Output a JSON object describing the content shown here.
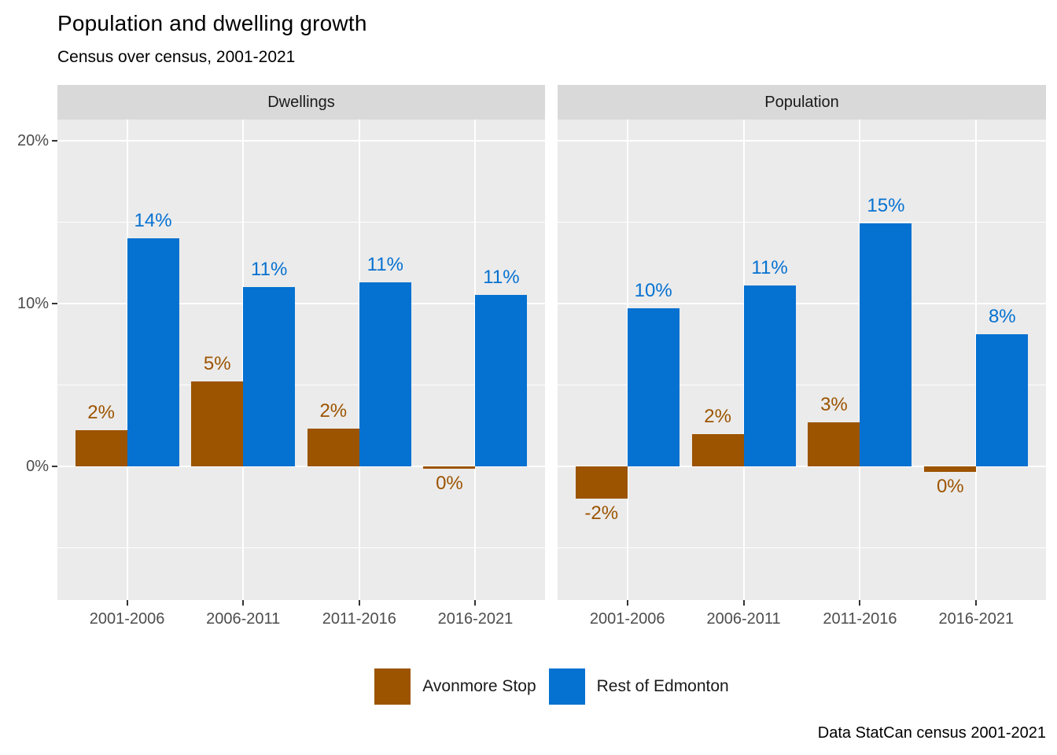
{
  "title": "Population and dwelling growth",
  "subtitle": "Census over census, 2001-2021",
  "caption": "Data StatCan census 2001-2021",
  "colors": {
    "avonmore": "#9C5400",
    "rest": "#0571D1",
    "panel_bg": "#EBEBEB",
    "strip_bg": "#D9D9D9",
    "grid": "#FFFFFF",
    "axis_text": "#4D4D4D",
    "tick_mark": "#333333"
  },
  "legend": {
    "items": [
      {
        "label": "Avonmore Stop",
        "color": "#9C5400"
      },
      {
        "label": "Rest of Edmonton",
        "color": "#0571D1"
      }
    ]
  },
  "y_axis": {
    "ticks": [
      {
        "label": "20%",
        "value": 20
      },
      {
        "label": "10%",
        "value": 10
      },
      {
        "label": "0%",
        "value": 0
      }
    ]
  },
  "chart_data": {
    "type": "bar",
    "title": "Population and dwelling growth",
    "subtitle": "Census over census, 2001-2021",
    "caption": "Data StatCan census 2001-2021",
    "categories": [
      "2001-2006",
      "2006-2011",
      "2011-2016",
      "2016-2021"
    ],
    "facets": [
      {
        "title": "Dwellings",
        "series": [
          {
            "name": "Avonmore Stop",
            "color": "#9C5400",
            "values": [
              2.2,
              5.2,
              2.3,
              -0.15
            ],
            "labels": [
              "2%",
              "5%",
              "2%",
              "0%"
            ]
          },
          {
            "name": "Rest of Edmonton",
            "color": "#0571D1",
            "values": [
              14.0,
              11.0,
              11.3,
              10.5
            ],
            "labels": [
              "14%",
              "11%",
              "11%",
              "11%"
            ]
          }
        ]
      },
      {
        "title": "Population",
        "series": [
          {
            "name": "Avonmore Stop",
            "color": "#9C5400",
            "values": [
              -2.0,
              2.0,
              2.7,
              -0.35
            ],
            "labels": [
              "-2%",
              "2%",
              "3%",
              "0%"
            ]
          },
          {
            "name": "Rest of Edmonton",
            "color": "#0571D1",
            "values": [
              9.7,
              11.1,
              14.9,
              8.1
            ],
            "labels": [
              "10%",
              "11%",
              "15%",
              "8%"
            ]
          }
        ]
      }
    ],
    "ylabel": "",
    "xlabel": "",
    "y_tick_labels": [
      "20%",
      "10%",
      "0%"
    ],
    "grid_major": [
      0,
      10,
      20
    ],
    "grid_minor": [
      -5,
      5,
      15
    ],
    "ylim": [
      -8.2,
      21.3
    ],
    "legend_position": "bottom",
    "grid": "on"
  }
}
